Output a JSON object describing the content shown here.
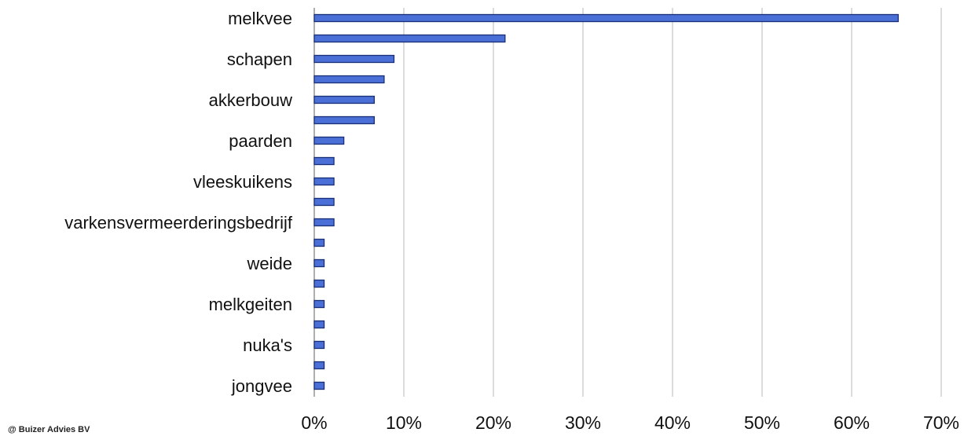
{
  "chart_data": {
    "type": "bar",
    "orientation": "horizontal",
    "title": "",
    "xlabel": "",
    "ylabel": "",
    "categories": [
      "melkvee",
      "",
      "schapen",
      "",
      "akkerbouw",
      "",
      "paarden",
      "",
      "vleeskuikens",
      "",
      "varkensvermeerderingsbedrijf",
      "",
      "weide",
      "",
      "melkgeiten",
      "",
      "nuka's",
      "",
      "jongvee"
    ],
    "values": [
      65.2,
      21.3,
      8.9,
      7.8,
      6.7,
      6.7,
      3.3,
      2.2,
      2.2,
      2.2,
      2.2,
      1.1,
      1.1,
      1.1,
      1.1,
      1.1,
      1.1,
      1.1,
      1.1
    ],
    "xlim": [
      0,
      70
    ],
    "xticks": [
      0,
      10,
      20,
      30,
      40,
      50,
      60,
      70
    ],
    "tick_suffix": "%",
    "grid": "vertical",
    "legend": "none",
    "bar_color": "#4a6fd6",
    "bar_edge_color": "#1a2f78"
  },
  "footer": {
    "credit": "@ Buizer Advies BV"
  }
}
